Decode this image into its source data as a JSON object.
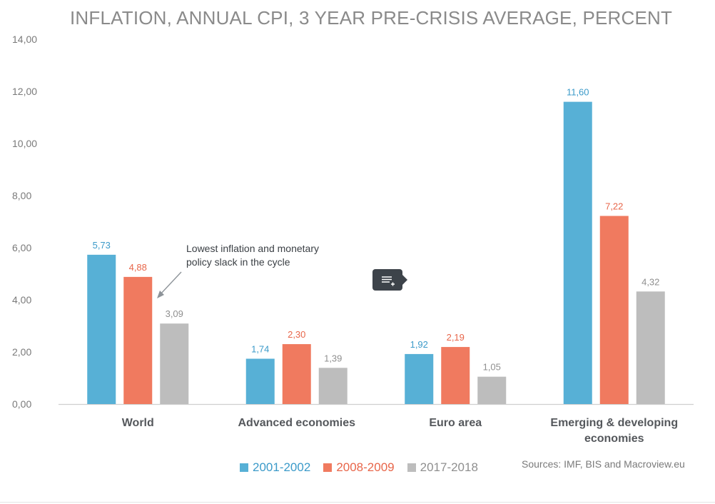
{
  "chart_data": {
    "type": "bar",
    "title": "INFLATION, ANNUAL CPI, 3 YEAR PRE-CRISIS AVERAGE, PERCENT",
    "categories": [
      [
        "World"
      ],
      [
        "Advanced economies"
      ],
      [
        "Euro area"
      ],
      [
        "Emerging & developing",
        "economies"
      ]
    ],
    "series": [
      {
        "name": "2001-2002",
        "color": "#57b0d6",
        "values": [
          5.73,
          1.74,
          1.92,
          11.6
        ],
        "labels": [
          "5,73",
          "1,74",
          "1,92",
          "11,60"
        ]
      },
      {
        "name": "2008-2009",
        "color": "#f07a5f",
        "values": [
          4.88,
          2.3,
          2.19,
          7.22
        ],
        "labels": [
          "4,88",
          "2,30",
          "2,19",
          "7,22"
        ]
      },
      {
        "name": "2017-2018",
        "color": "#bdbdbd",
        "values": [
          3.09,
          1.39,
          1.05,
          4.32
        ],
        "labels": [
          "3,09",
          "1,39",
          "1,05",
          "4,32"
        ]
      }
    ],
    "label_colors": [
      "#3b9ac9",
      "#e8664a",
      "#8f8f8f"
    ],
    "ylim": [
      0,
      14
    ],
    "yticks": [
      0,
      2,
      4,
      6,
      8,
      10,
      12,
      14
    ],
    "ytick_labels": [
      "0,00",
      "2,00",
      "4,00",
      "6,00",
      "8,00",
      "10,00",
      "12,00",
      "14,00"
    ],
    "grid": false,
    "legend_position": "bottom-center",
    "annotation": {
      "lines": [
        "Lowest inflation and monetary",
        "policy slack in the cycle"
      ]
    },
    "source": "Sources: IMF, BIS and Macroview.eu"
  }
}
